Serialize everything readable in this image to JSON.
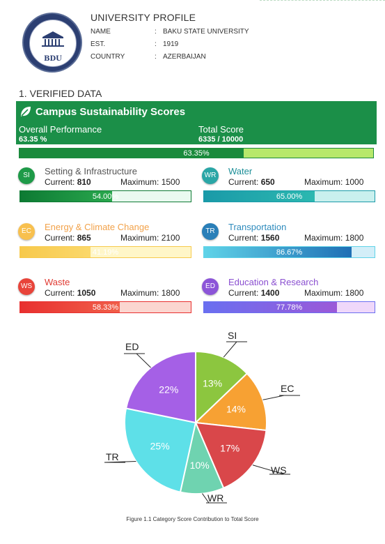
{
  "profile": {
    "title": "UNIVERSITY PROFILE",
    "logo_text": "BDU",
    "rows": [
      {
        "key": "NAME",
        "sep": ":",
        "value": "BAKU STATE UNIVERSITY"
      },
      {
        "key": "EST.",
        "sep": ":",
        "value": "1919"
      },
      {
        "key": "COUNTRY",
        "sep": ":",
        "value": "AZERBAIJAN"
      }
    ]
  },
  "section": {
    "title": "1. VERIFIED DATA"
  },
  "summary": {
    "title": "Campus Sustainability Scores",
    "overall_label": "Overall Performance",
    "overall_value": "63.35 %",
    "total_label": "Total Score",
    "total_value": "6335 / 10000",
    "progress_fraction": 0.6335,
    "progress_text": "63.35%",
    "colors": {
      "banner": "#1b8f48",
      "fill": "#1a8a3c",
      "track": "#b7e86b"
    }
  },
  "labels": {
    "current": "Current:",
    "maximum": "Maximum:"
  },
  "categories": [
    {
      "code": "SI",
      "name": "Setting & Infrastructure",
      "current": "810",
      "maximum": "1500",
      "percent_text": "54.00%",
      "fraction": 0.54,
      "name_color": "#555555",
      "badge_color": "#1e9a48",
      "fill_from": "#0d7a33",
      "fill_to": "#2aa84e",
      "track": "#eafaf0"
    },
    {
      "code": "WR",
      "name": "Water",
      "current": "650",
      "maximum": "1000",
      "percent_text": "65.00%",
      "fraction": 0.65,
      "name_color": "#1d8f98",
      "badge_color": "#2aa6a6",
      "fill_from": "#1a9aa8",
      "fill_to": "#2cb8b0",
      "track": "#c9f0ee"
    },
    {
      "code": "EC",
      "name": "Energy & Climate Change",
      "current": "865",
      "maximum": "2100",
      "percent_text": "41.19%",
      "fraction": 0.4119,
      "name_color": "#f2a24a",
      "badge_color": "#f8c04e",
      "fill_from": "#f7c94b",
      "fill_to": "#fbd86b",
      "track": "#fff6c8"
    },
    {
      "code": "TR",
      "name": "Transportation",
      "current": "1560",
      "maximum": "1800",
      "percent_text": "86.67%",
      "fraction": 0.8667,
      "name_color": "#2e8bbd",
      "badge_color": "#2a7fb8",
      "fill_from": "#5fd3e8",
      "fill_to": "#1f6fb5",
      "track": "#d3eef8"
    },
    {
      "code": "WS",
      "name": "Waste",
      "current": "1050",
      "maximum": "1800",
      "percent_text": "58.33%",
      "fraction": 0.5833,
      "name_color": "#e03a32",
      "badge_color": "#e8443a",
      "fill_from": "#e8302f",
      "fill_to": "#f0604a",
      "track": "#fbd6d0"
    },
    {
      "code": "ED",
      "name": "Education & Research",
      "current": "1400",
      "maximum": "1800",
      "percent_text": "77.78%",
      "fraction": 0.7778,
      "name_color": "#8a4fd0",
      "badge_color": "#8c55d8",
      "fill_from": "#6a6ff0",
      "fill_to": "#9b59d8",
      "track": "#efd8fa"
    }
  ],
  "chart_data": {
    "type": "pie",
    "slices": [
      {
        "label": "SI",
        "value": 13,
        "text": "13%",
        "color": "#8cc63f"
      },
      {
        "label": "EC",
        "value": 14,
        "text": "14%",
        "color": "#f7a133"
      },
      {
        "label": "WS",
        "value": 17,
        "text": "17%",
        "color": "#d9474a"
      },
      {
        "label": "WR",
        "value": 10,
        "text": "10%",
        "color": "#6fd3b0"
      },
      {
        "label": "TR",
        "value": 25,
        "text": "25%",
        "color": "#5ee0e8"
      },
      {
        "label": "ED",
        "value": 22,
        "text": "22%",
        "color": "#a560e6"
      }
    ]
  },
  "caption": "Figure 1.1 Category Score Contribution to Total Score"
}
